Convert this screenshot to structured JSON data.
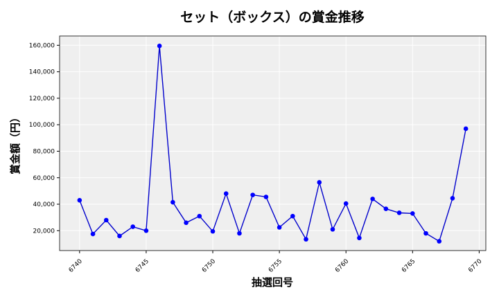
{
  "chart_data": {
    "type": "line",
    "title": "セット（ボックス）の賞金推移",
    "xlabel": "抽選回号",
    "ylabel": "賞金額（円）",
    "xlim": [
      6738.5,
      6770.5
    ],
    "ylim": [
      5000,
      167000
    ],
    "x_ticks": [
      6740,
      6745,
      6750,
      6755,
      6760,
      6765,
      6770
    ],
    "y_ticks": [
      20000,
      40000,
      60000,
      80000,
      100000,
      120000,
      140000,
      160000
    ],
    "y_tick_labels": [
      "20,000",
      "40,000",
      "60,000",
      "80,000",
      "100,000",
      "120,000",
      "140,000",
      "160,000"
    ],
    "grid": true,
    "colors": {
      "line": "#0000cc",
      "marker": "#0000ff",
      "plot_bg": "#efefef",
      "grid": "#ffffff"
    },
    "series": [
      {
        "x": [
          6740,
          6741,
          6742,
          6743,
          6744,
          6745,
          6746,
          6747,
          6748,
          6749,
          6750,
          6751,
          6752,
          6753,
          6754,
          6755,
          6756,
          6757,
          6758,
          6759,
          6760,
          6761,
          6762,
          6763,
          6764,
          6765,
          6766,
          6767,
          6768,
          6769
        ],
        "values": [
          43000,
          17500,
          28000,
          16000,
          23000,
          20000,
          159500,
          41500,
          26000,
          31000,
          19500,
          48000,
          18000,
          47000,
          45500,
          22500,
          31000,
          13500,
          56500,
          21000,
          40500,
          14500,
          44000,
          36500,
          33500,
          33000,
          18000,
          12000,
          44500,
          97000
        ]
      }
    ]
  }
}
